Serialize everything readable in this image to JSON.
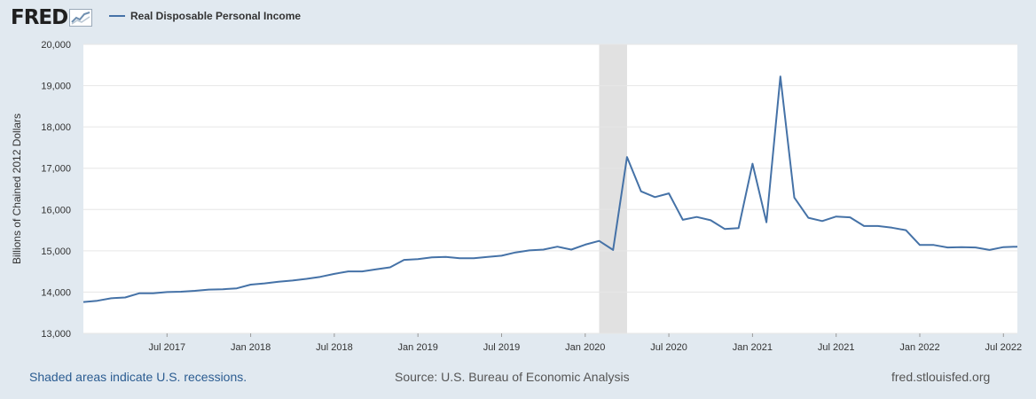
{
  "header": {
    "logo_text": "FRED",
    "logo_icon": "fred-chart-icon",
    "legend_label": "Real Disposable Personal Income",
    "legend_color": "#4572a7"
  },
  "footer": {
    "left": "Shaded areas indicate U.S. recessions.",
    "middle": "Source: U.S. Bureau of Economic Analysis",
    "right": "fred.stlouisfed.org"
  },
  "chart_data": {
    "type": "line",
    "title": "",
    "xlabel": "",
    "ylabel": "Billions of Chained 2012 Dollars",
    "ylim": [
      13000,
      20000
    ],
    "y_ticks": [
      "13,000",
      "14,000",
      "15,000",
      "16,000",
      "17,000",
      "18,000",
      "19,000",
      "20,000"
    ],
    "x_ticks": [
      "Jul 2017",
      "Jan 2018",
      "Jul 2018",
      "Jan 2019",
      "Jul 2019",
      "Jan 2020",
      "Jul 2020",
      "Jan 2021",
      "Jul 2021",
      "Jan 2022",
      "Jul 2022"
    ],
    "grid": true,
    "line_color": "#4572a7",
    "recession_color": "#e1e1e1",
    "recessions": [
      {
        "start": "2020-02",
        "end": "2020-04"
      }
    ],
    "series": [
      {
        "name": "Real Disposable Personal Income",
        "x": [
          "2017-01",
          "2017-02",
          "2017-03",
          "2017-04",
          "2017-05",
          "2017-06",
          "2017-07",
          "2017-08",
          "2017-09",
          "2017-10",
          "2017-11",
          "2017-12",
          "2018-01",
          "2018-02",
          "2018-03",
          "2018-04",
          "2018-05",
          "2018-06",
          "2018-07",
          "2018-08",
          "2018-09",
          "2018-10",
          "2018-11",
          "2018-12",
          "2019-01",
          "2019-02",
          "2019-03",
          "2019-04",
          "2019-05",
          "2019-06",
          "2019-07",
          "2019-08",
          "2019-09",
          "2019-10",
          "2019-11",
          "2019-12",
          "2020-01",
          "2020-02",
          "2020-03",
          "2020-04",
          "2020-05",
          "2020-06",
          "2020-07",
          "2020-08",
          "2020-09",
          "2020-10",
          "2020-11",
          "2020-12",
          "2021-01",
          "2021-02",
          "2021-03",
          "2021-04",
          "2021-05",
          "2021-06",
          "2021-07",
          "2021-08",
          "2021-09",
          "2021-10",
          "2021-11",
          "2021-12",
          "2022-01",
          "2022-02",
          "2022-03",
          "2022-04",
          "2022-05",
          "2022-06",
          "2022-07",
          "2022-08"
        ],
        "values": [
          13760,
          13790,
          13850,
          13870,
          13970,
          13970,
          14000,
          14010,
          14030,
          14060,
          14070,
          14090,
          14180,
          14210,
          14250,
          14280,
          14320,
          14370,
          14440,
          14500,
          14500,
          14550,
          14600,
          14780,
          14800,
          14840,
          14850,
          14820,
          14820,
          14850,
          14880,
          14960,
          15010,
          15030,
          15100,
          15030,
          15150,
          15240,
          15020,
          17270,
          16440,
          16300,
          16390,
          15750,
          15820,
          15740,
          15530,
          15550,
          17110,
          15690,
          19220,
          16290,
          15800,
          15720,
          15830,
          15810,
          15600,
          15600,
          15560,
          15500,
          15140,
          15140,
          15080,
          15090,
          15080,
          15020,
          15090,
          15100
        ]
      }
    ]
  }
}
